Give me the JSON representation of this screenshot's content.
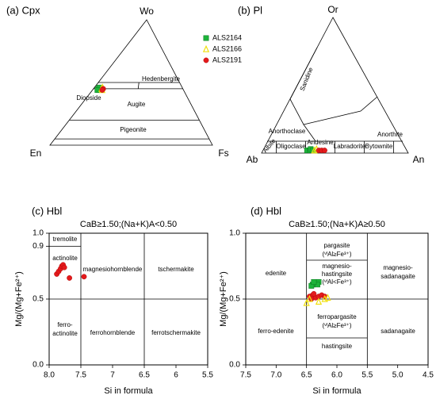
{
  "chart_data": [
    {
      "type": "ternary",
      "title": "(a) Cpx",
      "apices": [
        "Wo",
        "En",
        "Fs"
      ],
      "fields": [
        "Hedenbergite",
        "Diopside",
        "Augite",
        "Pigeonite"
      ],
      "series": [
        {
          "name": "ALS2164",
          "color": "#1db33a",
          "marker": "square",
          "values": [
            [
              45,
              52,
              3
            ],
            [
              44,
              52,
              4
            ],
            [
              45,
              51,
              4
            ],
            [
              46,
              51,
              3
            ],
            [
              44,
              53,
              3
            ]
          ]
        },
        {
          "name": "ALS2166",
          "color": "#f0e010",
          "marker": "triangle",
          "values": [
            [
              45,
              50,
              5
            ],
            [
              44,
              50,
              6
            ],
            [
              46,
              49,
              5
            ]
          ]
        },
        {
          "name": "ALS2191",
          "color": "#e31a1c",
          "marker": "circle",
          "values": [
            [
              45,
              49,
              6
            ],
            [
              44,
              50,
              6
            ]
          ]
        }
      ]
    },
    {
      "type": "ternary",
      "title": "(b) Pl",
      "apices": [
        "Or",
        "Ab",
        "An"
      ],
      "fields": [
        "Sanidine",
        "Anorthoclase",
        "Albite",
        "Oligoclase",
        "Andesine",
        "Labradorite",
        "Bytownite",
        "Anorthite"
      ],
      "series": [
        {
          "color": "#1db33a",
          "marker": "square",
          "values": [
            [
              2,
              68,
              30
            ],
            [
              2,
              66,
              32
            ],
            [
              3,
              65,
              32
            ],
            [
              2,
              64,
              34
            ]
          ]
        },
        {
          "color": "#f0e010",
          "marker": "triangle",
          "values": [
            [
              2,
              63,
              35
            ],
            [
              3,
              61,
              36
            ]
          ]
        },
        {
          "color": "#e31a1c",
          "marker": "circle",
          "values": [
            [
              2,
              60,
              38
            ],
            [
              2,
              58,
              40
            ],
            [
              2,
              56,
              42
            ]
          ]
        }
      ]
    },
    {
      "type": "scatter",
      "title": "(c) Hbl",
      "subtitle": "CaB≥1.50;(Na+K)A<0.50",
      "x_label": "Si in formula",
      "y_label": "Mg/(Mg+Fe²⁺)",
      "xlim": [
        8.0,
        5.5
      ],
      "ylim": [
        0.0,
        1.0
      ],
      "xticks": [
        {
          "value": 8.0,
          "label": "8.0"
        },
        7.5,
        7.0,
        6.5,
        6.0,
        5.5
      ],
      "yticks": [
        {
          "value": 0.0,
          "label": "0.0"
        },
        0.5,
        0.9,
        {
          "value": 1.0,
          "label": "1.0"
        }
      ],
      "fields": [
        "tremolite",
        "actinolite",
        "magnesiohornblende",
        "tschermakite",
        "ferro-",
        "actinolite",
        "ferrohornblende",
        "ferrotschermakite"
      ],
      "series": [
        {
          "color": "#e31a1c",
          "marker": "circle",
          "x": [
            7.88,
            7.85,
            7.82,
            7.8,
            7.78,
            7.76,
            7.68,
            7.45
          ],
          "values": [
            0.69,
            0.71,
            0.73,
            0.75,
            0.76,
            0.74,
            0.66,
            0.67
          ]
        }
      ]
    },
    {
      "type": "scatter",
      "title": "(d) Hbl",
      "subtitle": "CaB≥1.50;(Na+K)A≥0.50",
      "x_label": "Si in formula",
      "y_label": "Mg/(Mg+Fe²⁺)",
      "xlim": [
        7.5,
        4.5
      ],
      "ylim": [
        0.0,
        1.0
      ],
      "xticks": [
        7.5,
        {
          "value": 7.0,
          "label": "7.0"
        },
        6.5,
        {
          "value": 6.0,
          "label": "6.0"
        },
        5.5,
        {
          "value": 5.0,
          "label": "5.0"
        },
        4.5
      ],
      "yticks": [
        {
          "value": 0.0,
          "label": "0.0"
        },
        0.5,
        {
          "value": 1.0,
          "label": "1.0"
        }
      ],
      "fields": [
        "edenite",
        "pargasite",
        "(ᵛᴵAl≥Fe³⁺)",
        "magnesio-",
        "hastingsite",
        "(ᵛᴵAl<Fe³⁺)",
        "magnesio-",
        "sadanagaite",
        "ferro-edenite",
        "ferropargasite",
        "(ᵛᴵAl≥Fe³⁺)",
        "hastingsite",
        "sadanagaite"
      ],
      "series": [
        {
          "color": "#1db33a",
          "marker": "square",
          "x": [
            6.4,
            6.35,
            6.3,
            6.42,
            6.32,
            6.38
          ],
          "values": [
            0.61,
            0.62,
            0.63,
            0.6,
            0.61,
            0.63
          ]
        },
        {
          "color": "#e31a1c",
          "marker": "circle",
          "x": [
            6.45,
            6.4,
            6.35,
            6.3,
            6.25,
            6.42,
            6.38,
            6.2
          ],
          "values": [
            0.52,
            0.53,
            0.51,
            0.52,
            0.53,
            0.5,
            0.54,
            0.52
          ]
        },
        {
          "color": "#f0e010",
          "marker": "triangle",
          "x": [
            6.45,
            6.3,
            6.2,
            6.15,
            6.5
          ],
          "values": [
            0.5,
            0.48,
            0.5,
            0.51,
            0.47
          ]
        }
      ]
    }
  ]
}
